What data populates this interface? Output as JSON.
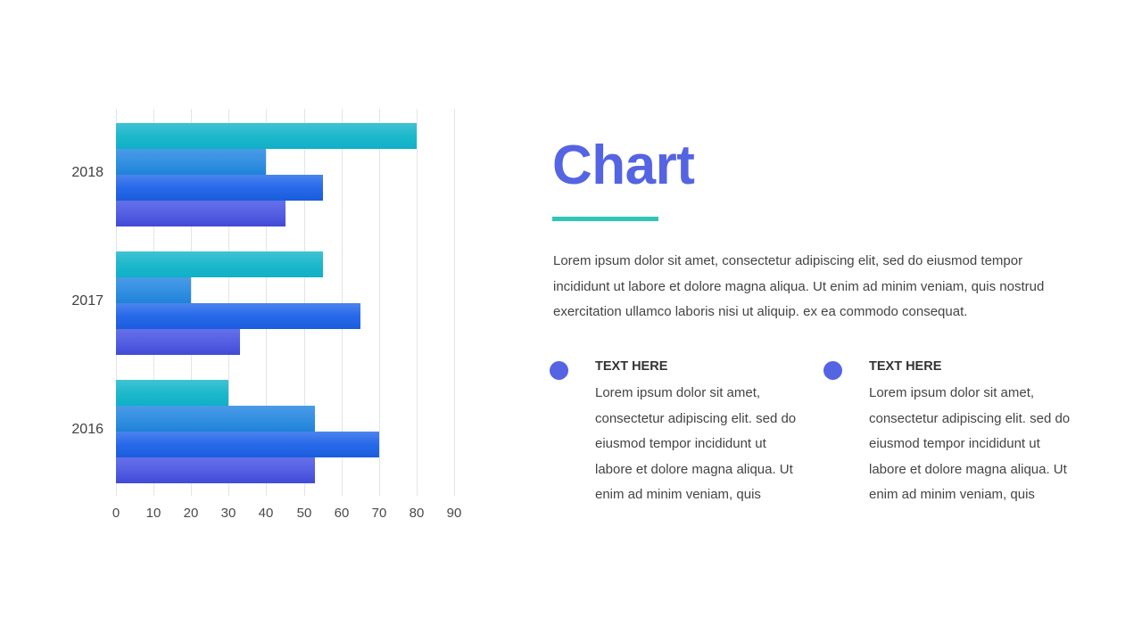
{
  "chart_data": {
    "type": "bar",
    "orientation": "horizontal",
    "categories": [
      "2018",
      "2017",
      "2016"
    ],
    "series": [
      {
        "name": "Series 1",
        "color": "#1eb8cc",
        "values": [
          80,
          55,
          30
        ]
      },
      {
        "name": "Series 2",
        "color": "#3590e2",
        "values": [
          40,
          20,
          53
        ]
      },
      {
        "name": "Series 3",
        "color": "#2869ea",
        "values": [
          55,
          65,
          70
        ]
      },
      {
        "name": "Series 4",
        "color": "#5460e3",
        "values": [
          45,
          33,
          53
        ]
      }
    ],
    "title": "",
    "xlabel": "",
    "ylabel": "",
    "xlim": [
      0,
      90
    ],
    "x_ticks": [
      "0",
      "10",
      "20",
      "30",
      "40",
      "50",
      "60",
      "70",
      "80",
      "90"
    ],
    "grid": true,
    "legend": "none"
  },
  "slide": {
    "title": "Chart",
    "title_color": "#5564e3",
    "accent_color": "#2fc6b5",
    "intro_lines": [
      "Lorem ipsum dolor sit amet, consectetur adipiscing elit, sed do eiusmod tempor",
      "incididunt ut labore et dolore magna aliqua. Ut enim ad minim veniam, quis nostrud",
      "exercitation ullamco laboris nisi ut aliquip. ex ea commodo consequat."
    ],
    "features": [
      {
        "icon": "circle-bullet-icon",
        "heading": "TEXT HERE",
        "lines": [
          "Lorem ipsum dolor sit amet,",
          "consectetur adipiscing elit. sed do",
          "eiusmod tempor incididunt ut",
          "labore et dolore magna aliqua. Ut",
          "enim ad minim veniam, quis"
        ]
      },
      {
        "icon": "circle-bullet-icon",
        "heading": "TEXT HERE",
        "lines": [
          "Lorem ipsum dolor sit amet,",
          "consectetur adipiscing elit. sed do",
          "eiusmod tempor incididunt ut",
          "labore et dolore magna aliqua. Ut",
          "enim ad minim veniam, quis"
        ]
      }
    ]
  }
}
